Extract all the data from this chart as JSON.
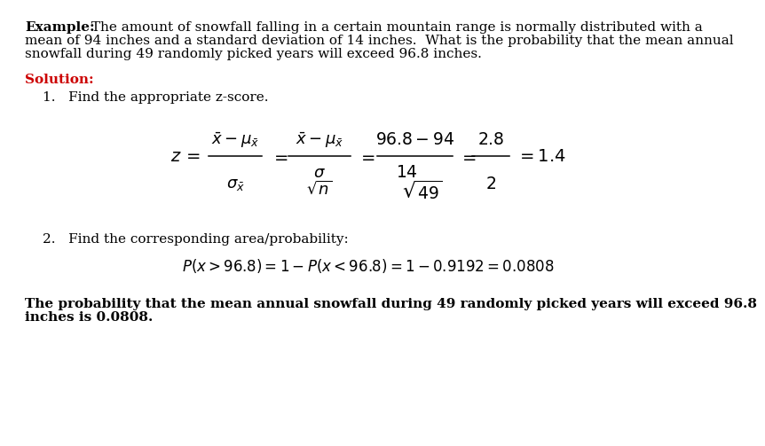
{
  "bg_color": "#ffffff",
  "example_bold": "Example:",
  "solution_label": "Solution:",
  "step1_text": "1.   Find the appropriate z-score.",
  "step2_text": "2.   Find the corresponding area/probability:",
  "conclusion_line1": "The probability that the mean annual snowfall during 49 randomly picked years will exceed 96.8",
  "conclusion_line2": "inches is 0.0808.",
  "text_color": "#000000",
  "solution_color": "#cc0000",
  "example_line1_rest": " The amount of snowfall falling in a certain mountain range is normally distributed with a",
  "example_line2": "mean of 94 inches and a standard deviation of 14 inches.  What is the probability that the mean annual",
  "example_line3": "snowfall during 49 randomly picked years will exceed 96.8 inches."
}
